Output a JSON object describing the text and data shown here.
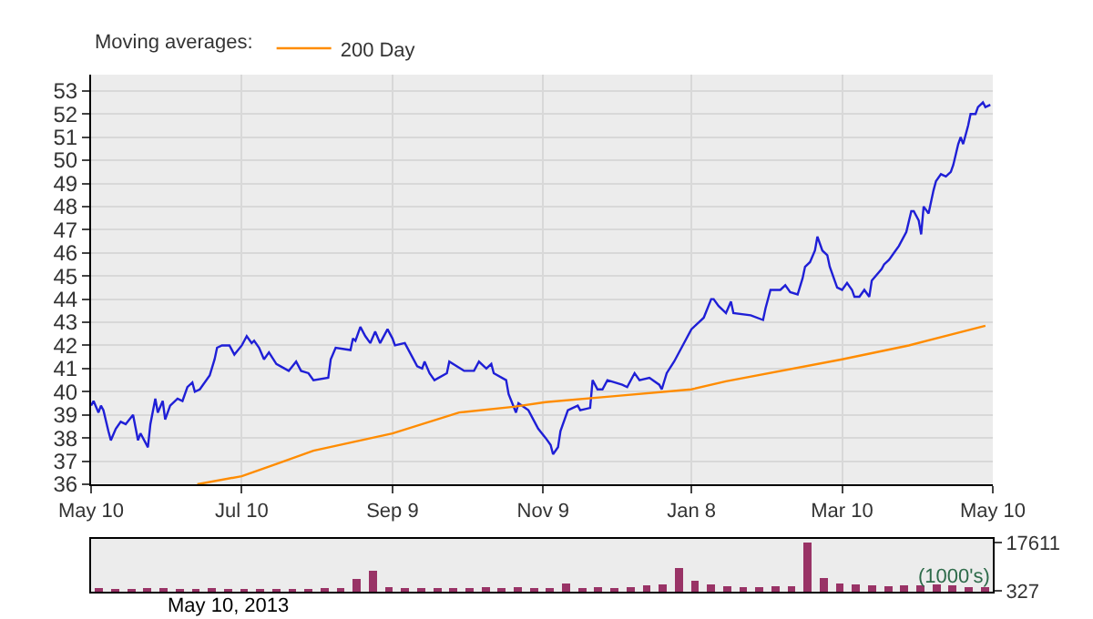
{
  "chart_data": [
    {
      "type": "line",
      "legend_title": "Moving averages:",
      "legend": "top left",
      "grid": true,
      "x": [
        "2012-05-10",
        "2012-05-11",
        "2012-05-13",
        "2012-05-14",
        "2012-05-15",
        "2012-05-17",
        "2012-05-18",
        "2012-05-20",
        "2012-05-22",
        "2012-05-24",
        "2012-05-27",
        "2012-05-29",
        "2012-05-30",
        "2012-06-02",
        "2012-06-03",
        "2012-06-05",
        "2012-06-06",
        "2012-06-08",
        "2012-06-09",
        "2012-06-11",
        "2012-06-14",
        "2012-06-16",
        "2012-06-18",
        "2012-06-20",
        "2012-06-21",
        "2012-06-23",
        "2012-06-27",
        "2012-06-29",
        "2012-06-30",
        "2012-07-02",
        "2012-07-05",
        "2012-07-07",
        "2012-07-10",
        "2012-07-12",
        "2012-07-14",
        "2012-07-15",
        "2012-07-17",
        "2012-07-19",
        "2012-07-21",
        "2012-07-24",
        "2012-07-29",
        "2012-08-01",
        "2012-08-03",
        "2012-08-06",
        "2012-08-08",
        "2012-08-14",
        "2012-08-15",
        "2012-08-17",
        "2012-08-23",
        "2012-08-24",
        "2012-08-25",
        "2012-08-27",
        "2012-08-29",
        "2012-08-31",
        "2012-09-02",
        "2012-09-04",
        "2012-09-07",
        "2012-09-09",
        "2012-09-10",
        "2012-09-14",
        "2012-09-17",
        "2012-09-19",
        "2012-09-21",
        "2012-09-22",
        "2012-09-24",
        "2012-09-26",
        "2012-10-01",
        "2012-10-02",
        "2012-10-08",
        "2012-10-12",
        "2012-10-14",
        "2012-10-17",
        "2012-10-19",
        "2012-10-20",
        "2012-10-25",
        "2012-10-26",
        "2012-10-29",
        "2012-10-30",
        "2012-11-03",
        "2012-11-07",
        "2012-11-10",
        "2012-11-12",
        "2012-11-13",
        "2012-11-15",
        "2012-11-16",
        "2012-11-19",
        "2012-11-23",
        "2012-11-24",
        "2012-11-28",
        "2012-11-29",
        "2012-12-01",
        "2012-12-03",
        "2012-12-05",
        "2012-12-11",
        "2012-12-13",
        "2012-12-15",
        "2012-12-16",
        "2012-12-18",
        "2012-12-22",
        "2012-12-26",
        "2012-12-27",
        "2012-12-29",
        "2013-01-01",
        "2013-01-04",
        "2013-01-08",
        "2013-01-11",
        "2013-01-13",
        "2013-01-16",
        "2013-01-17",
        "2013-01-19",
        "2013-01-22",
        "2013-01-24",
        "2013-01-25",
        "2013-02-01",
        "2013-02-06",
        "2013-02-07",
        "2013-02-09",
        "2013-02-13",
        "2013-02-15",
        "2013-02-17",
        "2013-02-20",
        "2013-02-22",
        "2013-02-23",
        "2013-02-25",
        "2013-02-27",
        "2013-02-28",
        "2013-03-02",
        "2013-03-04",
        "2013-03-05",
        "2013-03-07",
        "2013-03-08",
        "2013-03-10",
        "2013-03-12",
        "2013-03-14",
        "2013-03-15",
        "2013-03-17",
        "2013-03-19",
        "2013-03-21",
        "2013-03-22",
        "2013-03-26",
        "2013-03-27",
        "2013-03-29",
        "2013-03-31",
        "2013-04-02",
        "2013-04-05",
        "2013-04-07",
        "2013-04-08",
        "2013-04-10",
        "2013-04-11",
        "2013-04-12",
        "2013-04-14",
        "2013-04-16",
        "2013-04-17",
        "2013-04-19",
        "2013-04-21",
        "2013-04-23",
        "2013-04-24",
        "2013-04-26",
        "2013-04-27",
        "2013-04-28",
        "2013-04-30",
        "2013-05-01",
        "2013-05-03",
        "2013-05-04",
        "2013-05-06",
        "2013-05-07",
        "2013-05-09"
      ],
      "series": [
        {
          "color": "#1f1fd6",
          "values": [
            39.4,
            39.6,
            39.1,
            39.4,
            39.2,
            38.3,
            37.9,
            38.4,
            38.7,
            38.6,
            39.0,
            37.9,
            38.2,
            37.6,
            38.6,
            39.7,
            39.1,
            39.6,
            38.8,
            39.4,
            39.7,
            39.6,
            40.2,
            40.4,
            40.0,
            40.1,
            40.7,
            41.4,
            41.9,
            42.0,
            42.0,
            41.6,
            42.0,
            42.4,
            42.1,
            42.2,
            41.9,
            41.4,
            41.7,
            41.2,
            40.9,
            41.3,
            40.9,
            40.8,
            40.5,
            40.6,
            41.4,
            41.9,
            41.8,
            42.3,
            42.2,
            42.8,
            42.4,
            42.1,
            42.6,
            42.1,
            42.7,
            42.3,
            42.0,
            42.1,
            41.5,
            41.1,
            41.0,
            41.3,
            40.8,
            40.5,
            40.8,
            41.3,
            40.9,
            40.9,
            41.3,
            41.0,
            41.2,
            40.8,
            40.5,
            39.9,
            39.1,
            39.5,
            39.2,
            38.4,
            38.0,
            37.7,
            37.3,
            37.6,
            38.3,
            39.2,
            39.4,
            39.2,
            39.3,
            40.5,
            40.1,
            40.1,
            40.5,
            40.3,
            40.2,
            40.6,
            40.8,
            40.5,
            40.6,
            40.3,
            40.1,
            40.8,
            41.3,
            41.9,
            42.7,
            43.0,
            43.2,
            44.0,
            44.0,
            43.7,
            43.4,
            43.9,
            43.4,
            43.3,
            43.1,
            43.6,
            44.4,
            44.4,
            44.6,
            44.3,
            44.2,
            44.9,
            45.4,
            45.6,
            46.1,
            46.7,
            46.1,
            45.9,
            45.4,
            44.8,
            44.5,
            44.4,
            44.7,
            44.4,
            44.1,
            44.1,
            44.4,
            44.1,
            44.8,
            45.3,
            45.5,
            45.7,
            46.0,
            46.3,
            46.9,
            47.8,
            47.8,
            47.4,
            46.8,
            48.0,
            47.7,
            48.7,
            49.1,
            49.4,
            49.3,
            49.5,
            49.8,
            50.7,
            51.0,
            50.7,
            51.5,
            52.0,
            52.0,
            52.3,
            52.5,
            52.3,
            52.4
          ]
        },
        {
          "name": "200 Day",
          "color": "#ff8c00",
          "x": [
            "2012-06-22",
            "2012-07-10",
            "2012-07-22",
            "2012-08-08",
            "2012-09-09",
            "2012-10-06",
            "2012-10-28",
            "2012-11-10",
            "2012-12-07",
            "2013-01-08",
            "2013-01-22",
            "2013-03-10",
            "2013-04-06",
            "2013-05-07"
          ],
          "values": [
            36.0,
            36.35,
            36.8,
            37.45,
            38.2,
            39.1,
            39.35,
            39.55,
            39.8,
            40.1,
            40.45,
            41.4,
            42.0,
            42.85
          ]
        }
      ],
      "xlim": [
        "2012-05-10",
        "2013-05-10"
      ],
      "xticks": [
        {
          "value": "2012-05-10",
          "label": "May 10"
        },
        {
          "value": "2012-07-10",
          "label": "Jul 10"
        },
        {
          "value": "2012-09-09",
          "label": "Sep 9"
        },
        {
          "value": "2012-11-09",
          "label": "Nov 9"
        },
        {
          "value": "2013-01-08",
          "label": "Jan 8"
        },
        {
          "value": "2013-03-10",
          "label": "Mar 10"
        },
        {
          "value": "2013-05-10",
          "label": "May 10"
        }
      ],
      "ylim": [
        36,
        53.7
      ],
      "yticks": [
        36,
        37,
        38,
        39,
        40,
        41,
        42,
        43,
        44,
        45,
        46,
        47,
        48,
        49,
        50,
        51,
        52,
        53
      ]
    },
    {
      "type": "bar",
      "color": "#993366",
      "categories": [
        null,
        null,
        null,
        null,
        null,
        null,
        null,
        null,
        null,
        null,
        null,
        null,
        null,
        null,
        null,
        null,
        null,
        null,
        null,
        null,
        null,
        null,
        null,
        null,
        null,
        null,
        null,
        null,
        null,
        null,
        null,
        null,
        null,
        null,
        null,
        null,
        null,
        null,
        null,
        null,
        null,
        null,
        null,
        null,
        null,
        null,
        null,
        null,
        null,
        null,
        null,
        null,
        null,
        null,
        null,
        null
      ],
      "tick_labels": "y",
      "values": [
        1200,
        1100,
        1000,
        1300,
        1200,
        1100,
        1000,
        1200,
        900,
        1000,
        900,
        1000,
        900,
        1100,
        1300,
        1200,
        4500,
        7400,
        1500,
        1200,
        1300,
        1200,
        1400,
        1300,
        1500,
        1200,
        1600,
        1400,
        1300,
        3100,
        1300,
        1500,
        1400,
        1600,
        2200,
        2500,
        8600,
        4000,
        2500,
        2000,
        1500,
        1700,
        2000,
        2000,
        17611,
        5000,
        3000,
        2500,
        2300,
        2000,
        2400,
        2200,
        2600,
        2300,
        1800,
        1500
      ],
      "ylim": [
        0,
        19000
      ],
      "yticks": [
        327,
        17611
      ],
      "annotations": [
        "(1000's)",
        "May 10, 2013"
      ]
    }
  ]
}
